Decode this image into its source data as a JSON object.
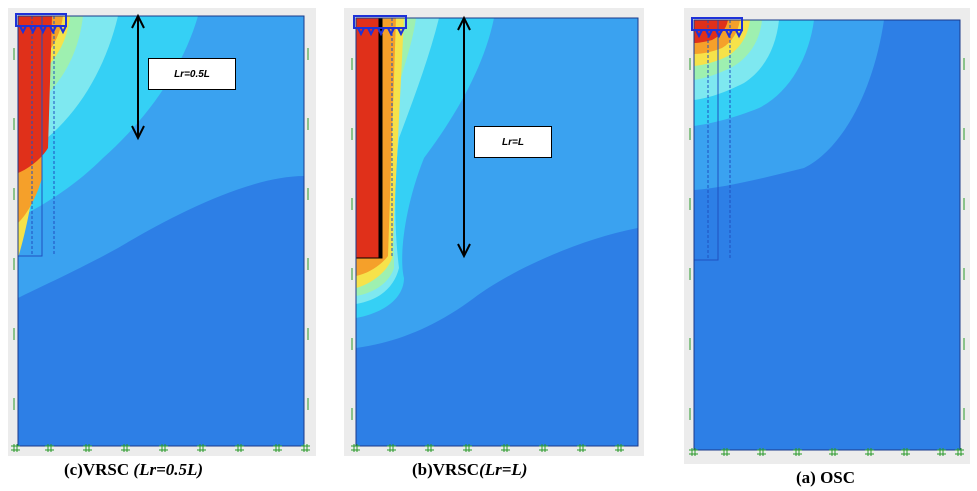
{
  "panels": [
    {
      "caption_main": "(c)VRSC ",
      "caption_italic": "(Lr=0.5L)",
      "label": "Lr=0.5L"
    },
    {
      "caption_main": "(b)VRSC",
      "caption_italic": "(Lr=L)",
      "label": "Lr=L"
    },
    {
      "caption_main": "(a) OSC",
      "caption_italic": "",
      "label": ""
    }
  ],
  "colors": {
    "frame_bg": "#ececec",
    "deep_blue": "#2d7fe6",
    "light_blue": "#3aa2f0",
    "cyan": "#35d0f5",
    "aqua": "#7ee8f0",
    "yellow": "#f6e24a",
    "orange": "#f5a02a",
    "red": "#e0301a",
    "boundary_green": "#2a9a2a",
    "load_blue": "#1e32d8"
  }
}
